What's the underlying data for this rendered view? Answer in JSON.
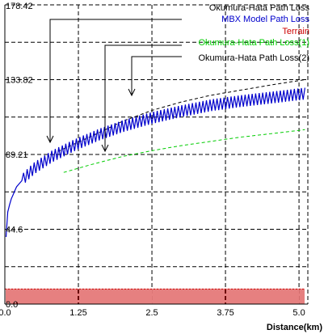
{
  "chart_data": {
    "type": "line",
    "title": "",
    "xlabel": "Distance(km)",
    "ylabel": "",
    "xlim": [
      0,
      5.15
    ],
    "ylim": [
      0,
      178.42
    ],
    "y_ticks": [
      {
        "value": 0,
        "label": "0.0"
      },
      {
        "value": 44.6,
        "label": "44.6"
      },
      {
        "value": 89.21,
        "label": "89.21"
      },
      {
        "value": 133.82,
        "label": "133.82"
      },
      {
        "value": 178.42,
        "label": "178.42"
      }
    ],
    "x_ticks": [
      {
        "value": 0,
        "label": "0.0"
      },
      {
        "value": 1.25,
        "label": "1.25"
      },
      {
        "value": 2.5,
        "label": "2.5"
      },
      {
        "value": 3.75,
        "label": "3.75"
      },
      {
        "value": 5.0,
        "label": "5.0"
      }
    ],
    "grid": true,
    "legend_position": "top-right",
    "series": [
      {
        "name": "Okumura-Hata  Path Loss",
        "color": "#000000",
        "style": "dashed",
        "x": [
          0.9,
          1.5,
          2.0,
          2.5,
          3.0,
          3.5,
          4.0,
          4.5,
          5.1
        ],
        "y": [
          91,
          100.5,
          109,
          115.5,
          120.5,
          124.5,
          127.5,
          130.5,
          133.8
        ]
      },
      {
        "name": "MBX Model  Path Loss",
        "color": "#0000cc",
        "style": "sawtooth",
        "x": [
          0.02,
          0.05,
          0.1,
          0.2,
          0.35,
          0.5,
          0.8,
          1.2,
          1.6,
          2.0,
          2.5,
          3.0,
          3.5,
          4.0,
          4.5,
          5.1
        ],
        "y": [
          40,
          55,
          62,
          70,
          76,
          81,
          88,
          95,
          101,
          106,
          111,
          115,
          118.5,
          121,
          123,
          125.5
        ]
      },
      {
        "name": "Terrain",
        "color": "#cc0000",
        "style": "square-wave",
        "x": [
          0,
          5.1
        ],
        "y": [
          0,
          9
        ]
      },
      {
        "name": "Okumura-Hata  Path Loss(1)",
        "color": "#00cc00",
        "style": "dashed",
        "x": [
          1.0,
          1.5,
          2.0,
          2.5,
          3.0,
          3.5,
          4.0,
          4.5,
          5.1
        ],
        "y": [
          78.5,
          83.5,
          88,
          91.5,
          94.5,
          97,
          99.5,
          101.5,
          104
        ]
      }
    ],
    "annotations": [
      {
        "text": "Okumura-Hata  Path Loss(2)",
        "color": "#000000"
      }
    ]
  }
}
